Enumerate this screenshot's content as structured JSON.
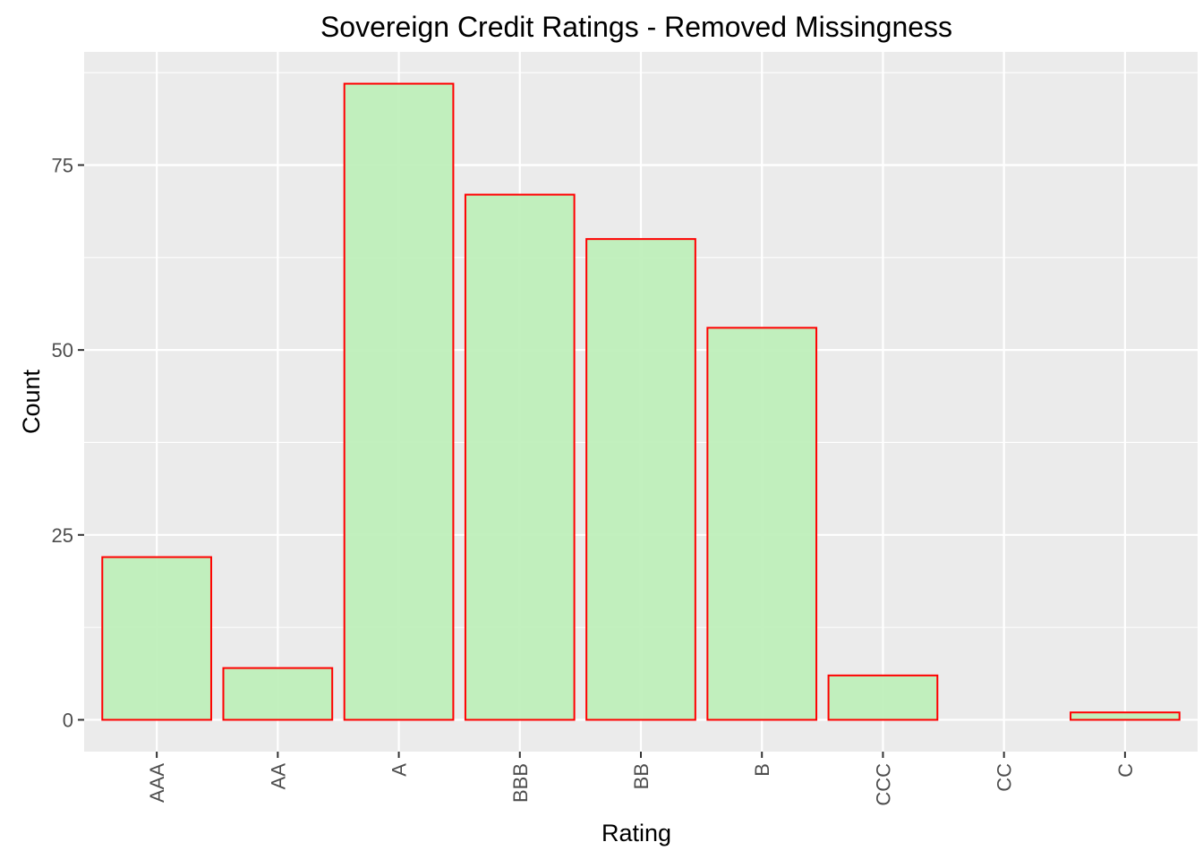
{
  "chart_data": {
    "type": "bar",
    "title": "Sovereign Credit Ratings - Removed Missingness",
    "xlabel": "Rating",
    "ylabel": "Count",
    "categories": [
      "AAA",
      "AA",
      "A",
      "BBB",
      "BB",
      "B",
      "CCC",
      "CC",
      "C"
    ],
    "values": [
      22,
      7,
      86,
      71,
      65,
      53,
      6,
      0,
      1
    ],
    "ylim": [
      -4.3,
      90.3
    ],
    "yticks": [
      0,
      25,
      50,
      75
    ],
    "grid": true,
    "legend": "none",
    "colors": {
      "panel_background": "#EBEBEB",
      "grid": "#FFFFFF",
      "bar_fill": "#BFEFBB",
      "bar_outline": "#FF0000"
    }
  }
}
